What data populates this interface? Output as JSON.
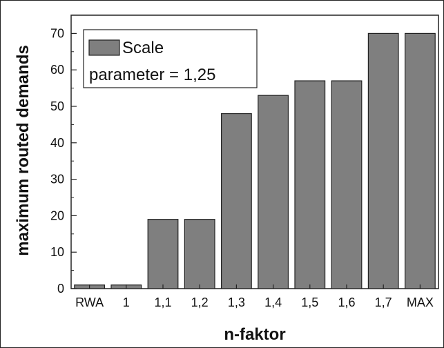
{
  "chart_data": {
    "type": "bar",
    "title": "",
    "xlabel": "n-faktor",
    "ylabel": "maximum routed demands",
    "categories": [
      "RWA",
      "1",
      "1,1",
      "1,2",
      "1,3",
      "1,4",
      "1,5",
      "1,6",
      "1,7",
      "MAX"
    ],
    "series": [
      {
        "name": "Scale",
        "values": [
          1,
          1,
          19,
          19,
          48,
          53,
          57,
          57,
          70,
          70
        ]
      }
    ],
    "legend": {
      "entry": "Scale",
      "note": "parameter = 1,25",
      "placement": "top-left"
    },
    "ylim": [
      0,
      75
    ],
    "yticks": [
      0,
      10,
      20,
      30,
      40,
      50,
      60,
      70
    ],
    "grid": false,
    "colors": {
      "bar_fill": "#7f7f7f",
      "bar_stroke": "#222222"
    }
  }
}
